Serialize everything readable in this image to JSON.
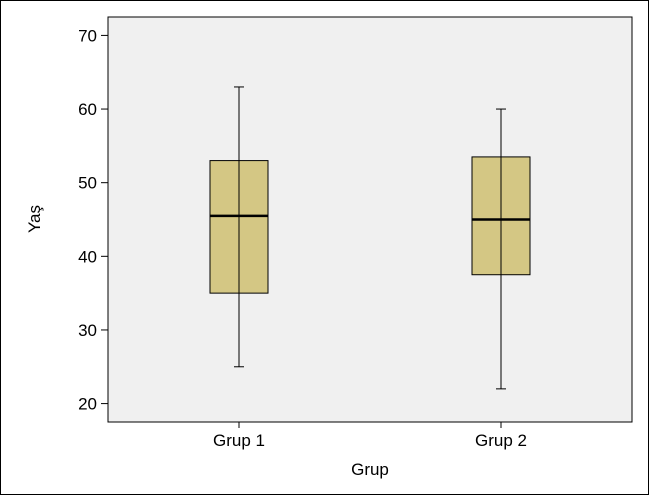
{
  "chart_data": {
    "type": "boxplot",
    "title": "",
    "xlabel": "Grup",
    "ylabel": "Yaş",
    "categories": [
      "Grup 1",
      "Grup 2"
    ],
    "boxes": [
      {
        "category": "Grup 1",
        "min": 25,
        "q1": 35,
        "median": 45.5,
        "q3": 53,
        "max": 63
      },
      {
        "category": "Grup 2",
        "min": 22,
        "q1": 37.5,
        "median": 45,
        "q3": 53.5,
        "max": 60
      }
    ],
    "ylim": [
      17.5,
      72.5
    ],
    "yticks": [
      20,
      30,
      40,
      50,
      60,
      70
    ],
    "grid": false,
    "legend": "none",
    "colors": {
      "box_fill": "#d4c784",
      "plot_background": "#f0f0f0",
      "line": "#000000"
    }
  }
}
